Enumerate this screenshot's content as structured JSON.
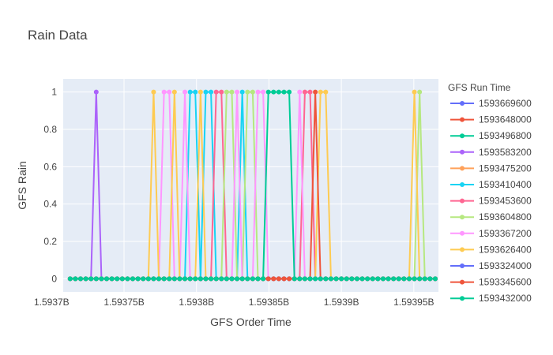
{
  "chart_data": {
    "type": "line",
    "title": "Rain Data",
    "xlabel": "GFS Order Time",
    "ylabel": "GFS Rain",
    "xlim": [
      1593708000,
      1593967000
    ],
    "ylim": [
      -0.07,
      1.07
    ],
    "xticks": [
      {
        "value": 1593700000,
        "label": "1.5937B"
      },
      {
        "value": 1593750000,
        "label": "1.59375B"
      },
      {
        "value": 1593800000,
        "label": "1.5938B"
      },
      {
        "value": 1593850000,
        "label": "1.59385B"
      },
      {
        "value": 1593900000,
        "label": "1.5939B"
      },
      {
        "value": 1593950000,
        "label": "1.59395B"
      }
    ],
    "yticks": [
      {
        "value": 0,
        "label": "0"
      },
      {
        "value": 0.2,
        "label": "0.2"
      },
      {
        "value": 0.4,
        "label": "0.4"
      },
      {
        "value": 0.6,
        "label": "0.6"
      },
      {
        "value": 0.8,
        "label": "0.8"
      },
      {
        "value": 1,
        "label": "1"
      }
    ],
    "grid": true,
    "legend_title": "GFS Run Time",
    "legend_position": "right",
    "x_range": [
      1593712800,
      1593964800
    ],
    "x_step": 3600,
    "series": [
      {
        "name": "1593669600",
        "color": "#636efa",
        "peaks": []
      },
      {
        "name": "1593648000",
        "color": "#EF553B",
        "peaks": []
      },
      {
        "name": "1593496800",
        "color": "#00cc96",
        "peaks": []
      },
      {
        "name": "1593583200",
        "color": "#ab63fa",
        "peaks": [
          1593730800
        ]
      },
      {
        "name": "1593475200",
        "color": "#FFA15A",
        "peaks": []
      },
      {
        "name": "1593410400",
        "color": "#19d3f3",
        "peaks": [
          1593795600,
          1593799200,
          1593806400,
          1593810000,
          1593831600
        ]
      },
      {
        "name": "1593453600",
        "color": "#FF6692",
        "peaks": [
          1593813600,
          1593817200,
          1593874800,
          1593878400
        ]
      },
      {
        "name": "1593604800",
        "color": "#B6E880",
        "peaks": [
          1593820800,
          1593824400,
          1593835200,
          1593838800,
          1593954000
        ]
      },
      {
        "name": "1593367200",
        "color": "#FF97FF",
        "peaks": [
          1593777600,
          1593781200,
          1593792000,
          1593828000,
          1593842400,
          1593846000,
          1593871200
        ]
      },
      {
        "name": "1593626400",
        "color": "#FECB52",
        "peaks": [
          1593770400,
          1593784800,
          1593802800,
          1593885600,
          1593889200,
          1593950400
        ]
      },
      {
        "name": "1593324000",
        "color": "#636efa",
        "peaks": []
      },
      {
        "name": "1593345600",
        "color": "#EF553B",
        "peaks": [
          1593882000
        ]
      },
      {
        "name": "1593432000",
        "color": "#00cc96",
        "peaks": [
          1593849600,
          1593853200,
          1593856800,
          1593860400,
          1593864000
        ]
      }
    ]
  }
}
